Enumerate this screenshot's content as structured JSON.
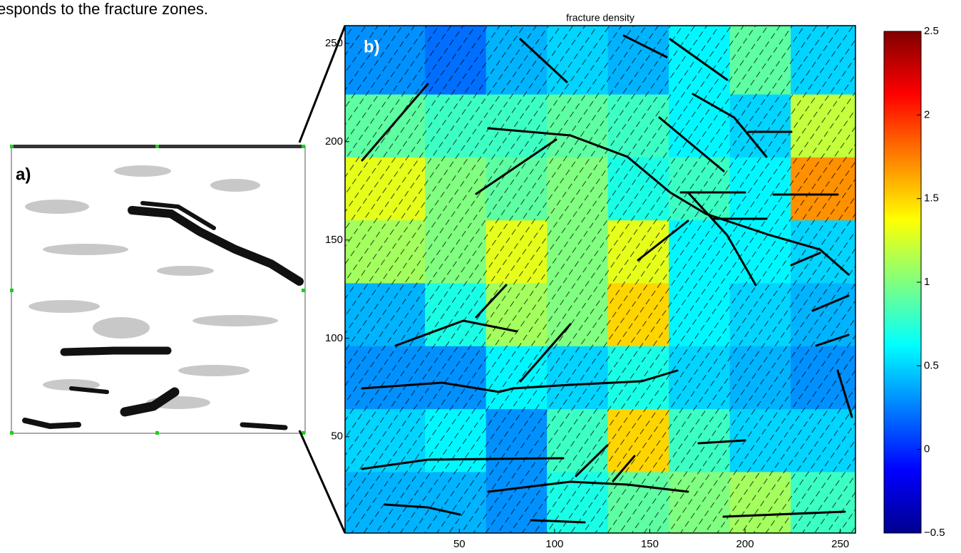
{
  "text_fragment": "esponds to the fracture zones.",
  "panel_a": {
    "label": "a)"
  },
  "chart_data": {
    "type": "heatmap",
    "label": "b)",
    "title": "fracture density",
    "colormap": "jet",
    "x": [
      16,
      48,
      80,
      112,
      144,
      176,
      208,
      240
    ],
    "y": [
      240,
      208,
      176,
      144,
      112,
      80,
      48,
      16
    ],
    "z": [
      [
        0.3,
        0.2,
        0.4,
        0.5,
        0.4,
        0.6,
        0.9,
        0.5
      ],
      [
        0.9,
        0.8,
        0.8,
        0.9,
        0.8,
        0.6,
        0.5,
        1.2
      ],
      [
        1.3,
        1.0,
        0.9,
        1.0,
        0.7,
        0.8,
        0.6,
        1.7
      ],
      [
        1.1,
        1.0,
        1.3,
        1.0,
        1.3,
        0.6,
        0.6,
        0.5
      ],
      [
        0.4,
        0.7,
        1.1,
        1.0,
        1.5,
        0.6,
        0.5,
        0.4
      ],
      [
        0.3,
        0.3,
        0.6,
        0.5,
        0.7,
        0.5,
        0.4,
        0.3
      ],
      [
        0.5,
        0.6,
        0.3,
        0.8,
        1.5,
        0.8,
        0.5,
        0.5
      ],
      [
        0.4,
        0.4,
        0.3,
        0.7,
        0.9,
        1.0,
        1.1,
        0.8
      ]
    ],
    "xlim": [
      -10,
      258
    ],
    "ylim": [
      1,
      259
    ],
    "xticks": [
      50,
      100,
      150,
      200,
      250
    ],
    "yticks": [
      50,
      100,
      150,
      200,
      250
    ],
    "clim": [
      -0.5,
      2.5
    ],
    "colorbar_ticks": [
      {
        "value": -0.5,
        "label": "−0.5"
      },
      0,
      0.5,
      1,
      1.5,
      2,
      2.5
    ]
  }
}
